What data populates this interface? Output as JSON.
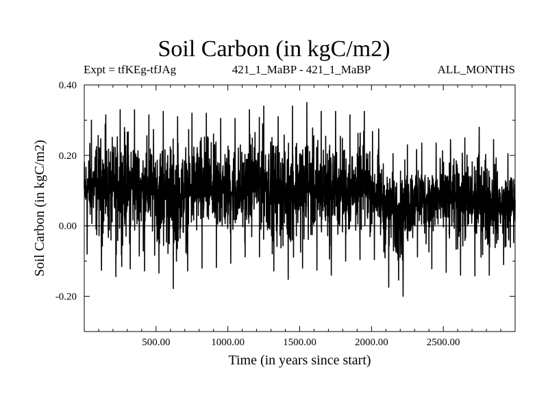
{
  "chart_data": {
    "type": "line",
    "title": "Soil Carbon (in kgC/m2)",
    "subtitle_left": "Expt = tfKEg-tfJAg",
    "subtitle_center": "421_1_MaBP - 421_1_MaBP",
    "subtitle_right": "ALL_MONTHS",
    "xlabel": "Time (in years since start)",
    "ylabel": "Soil Carbon (in kgC/m2)",
    "xlim": [
      0,
      3000
    ],
    "ylim": [
      -0.3,
      0.4
    ],
    "xticks": [
      500,
      1000,
      1500,
      2000,
      2500
    ],
    "xtick_labels": [
      "500.00",
      "1000.00",
      "1500.00",
      "2000.00",
      "2500.00"
    ],
    "yticks": [
      -0.2,
      0.0,
      0.2,
      0.4
    ],
    "ytick_labels": [
      "-0.20",
      "0.00",
      "0.20",
      "0.40"
    ],
    "zero_line": true,
    "grid": false,
    "series": [
      {
        "color": "#000000",
        "x": [
          0,
          100,
          200,
          300,
          400,
          500,
          600,
          700,
          800,
          900,
          1000,
          1100,
          1200,
          1300,
          1400,
          1500,
          1600,
          1700,
          1800,
          1900,
          2000,
          2100,
          2200,
          2300,
          2400,
          2500,
          2600,
          2700,
          2800,
          2900,
          3000
        ],
        "mean": [
          0.1,
          0.12,
          0.1,
          0.12,
          0.11,
          0.1,
          0.1,
          0.09,
          0.12,
          0.11,
          0.1,
          0.1,
          0.13,
          0.11,
          0.1,
          0.11,
          0.1,
          0.11,
          0.1,
          0.11,
          0.1,
          0.06,
          0.05,
          0.07,
          0.08,
          0.08,
          0.08,
          0.07,
          0.08,
          0.06,
          0.07
        ],
        "max": [
          0.27,
          0.33,
          0.3,
          0.36,
          0.3,
          0.33,
          0.32,
          0.3,
          0.34,
          0.3,
          0.31,
          0.3,
          0.36,
          0.32,
          0.3,
          0.38,
          0.32,
          0.33,
          0.32,
          0.31,
          0.34,
          0.21,
          0.2,
          0.26,
          0.21,
          0.26,
          0.23,
          0.27,
          0.29,
          0.2,
          0.21
        ],
        "min": [
          -0.07,
          -0.12,
          -0.15,
          -0.12,
          -0.13,
          -0.12,
          -0.19,
          -0.13,
          -0.12,
          -0.12,
          -0.11,
          -0.09,
          -0.08,
          -0.12,
          -0.16,
          -0.12,
          -0.12,
          -0.15,
          -0.1,
          -0.1,
          -0.08,
          -0.16,
          -0.23,
          -0.08,
          -0.12,
          -0.13,
          -0.14,
          -0.14,
          -0.15,
          -0.1,
          -0.15
        ]
      }
    ]
  }
}
